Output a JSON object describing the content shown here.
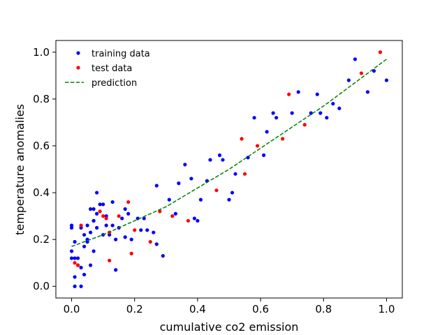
{
  "chart_data": {
    "type": "scatter",
    "title": "",
    "xlabel": "cumulative co2 emission",
    "ylabel": "temperature anomalies",
    "xlim": [
      -0.05,
      1.05
    ],
    "ylim": [
      -0.05,
      1.05
    ],
    "xticks": [
      0.0,
      0.2,
      0.4,
      0.6,
      0.8,
      1.0
    ],
    "yticks": [
      0.0,
      0.2,
      0.4,
      0.6,
      0.8,
      1.0
    ],
    "xtick_labels": [
      "0.0",
      "0.2",
      "0.4",
      "0.6",
      "0.8",
      "1.0"
    ],
    "ytick_labels": [
      "0.0",
      "0.2",
      "0.4",
      "0.6",
      "0.8",
      "1.0"
    ],
    "grid": false,
    "legend_position": "top-left",
    "colors": {
      "training": "#0000ff",
      "test": "#ff0000",
      "prediction": "#008000"
    },
    "series": [
      {
        "name": "training data",
        "kind": "scatter",
        "points": [
          [
            0.0,
            0.25
          ],
          [
            0.0,
            0.26
          ],
          [
            0.0,
            0.15
          ],
          [
            0.01,
            0.19
          ],
          [
            0.0,
            0.12
          ],
          [
            0.01,
            0.04
          ],
          [
            0.01,
            0.0
          ],
          [
            0.02,
            0.12
          ],
          [
            0.01,
            0.12
          ],
          [
            0.02,
            0.09
          ],
          [
            0.03,
            0.08
          ],
          [
            0.03,
            0.0
          ],
          [
            0.04,
            0.05
          ],
          [
            0.03,
            0.25
          ],
          [
            0.04,
            0.22
          ],
          [
            0.04,
            0.17
          ],
          [
            0.05,
            0.19
          ],
          [
            0.05,
            0.26
          ],
          [
            0.05,
            0.2
          ],
          [
            0.06,
            0.23
          ],
          [
            0.06,
            0.33
          ],
          [
            0.07,
            0.28
          ],
          [
            0.07,
            0.33
          ],
          [
            0.07,
            0.28
          ],
          [
            0.08,
            0.31
          ],
          [
            0.06,
            0.09
          ],
          [
            0.07,
            0.15
          ],
          [
            0.08,
            0.25
          ],
          [
            0.08,
            0.4
          ],
          [
            0.09,
            0.35
          ],
          [
            0.1,
            0.35
          ],
          [
            0.1,
            0.22
          ],
          [
            0.11,
            0.26
          ],
          [
            0.11,
            0.3
          ],
          [
            0.12,
            0.22
          ],
          [
            0.13,
            0.26
          ],
          [
            0.13,
            0.36
          ],
          [
            0.14,
            0.2
          ],
          [
            0.15,
            0.25
          ],
          [
            0.14,
            0.07
          ],
          [
            0.16,
            0.29
          ],
          [
            0.17,
            0.33
          ],
          [
            0.17,
            0.21
          ],
          [
            0.18,
            0.31
          ],
          [
            0.19,
            0.2
          ],
          [
            0.21,
            0.29
          ],
          [
            0.22,
            0.24
          ],
          [
            0.23,
            0.29
          ],
          [
            0.24,
            0.24
          ],
          [
            0.26,
            0.23
          ],
          [
            0.27,
            0.43
          ],
          [
            0.27,
            0.18
          ],
          [
            0.29,
            0.13
          ],
          [
            0.31,
            0.37
          ],
          [
            0.33,
            0.31
          ],
          [
            0.34,
            0.44
          ],
          [
            0.36,
            0.52
          ],
          [
            0.38,
            0.46
          ],
          [
            0.39,
            0.29
          ],
          [
            0.4,
            0.28
          ],
          [
            0.41,
            0.37
          ],
          [
            0.43,
            0.45
          ],
          [
            0.44,
            0.54
          ],
          [
            0.47,
            0.56
          ],
          [
            0.48,
            0.54
          ],
          [
            0.5,
            0.37
          ],
          [
            0.51,
            0.4
          ],
          [
            0.52,
            0.48
          ],
          [
            0.56,
            0.55
          ],
          [
            0.58,
            0.72
          ],
          [
            0.61,
            0.56
          ],
          [
            0.62,
            0.66
          ],
          [
            0.64,
            0.74
          ],
          [
            0.65,
            0.72
          ],
          [
            0.7,
            0.74
          ],
          [
            0.72,
            0.83
          ],
          [
            0.76,
            0.74
          ],
          [
            0.78,
            0.82
          ],
          [
            0.79,
            0.74
          ],
          [
            0.81,
            0.72
          ],
          [
            0.83,
            0.78
          ],
          [
            0.85,
            0.76
          ],
          [
            0.88,
            0.88
          ],
          [
            0.9,
            0.97
          ],
          [
            0.94,
            0.83
          ],
          [
            0.96,
            0.92
          ],
          [
            1.0,
            0.88
          ]
        ]
      },
      {
        "name": "test data",
        "kind": "scatter",
        "points": [
          [
            0.01,
            0.1
          ],
          [
            0.02,
            0.09
          ],
          [
            0.03,
            0.26
          ],
          [
            0.09,
            0.32
          ],
          [
            0.1,
            0.3
          ],
          [
            0.11,
            0.29
          ],
          [
            0.12,
            0.11
          ],
          [
            0.12,
            0.23
          ],
          [
            0.15,
            0.3
          ],
          [
            0.18,
            0.36
          ],
          [
            0.19,
            0.14
          ],
          [
            0.2,
            0.24
          ],
          [
            0.25,
            0.19
          ],
          [
            0.28,
            0.32
          ],
          [
            0.32,
            0.3
          ],
          [
            0.37,
            0.28
          ],
          [
            0.46,
            0.41
          ],
          [
            0.54,
            0.63
          ],
          [
            0.55,
            0.48
          ],
          [
            0.59,
            0.6
          ],
          [
            0.67,
            0.63
          ],
          [
            0.69,
            0.82
          ],
          [
            0.74,
            0.69
          ],
          [
            0.92,
            0.91
          ],
          [
            0.98,
            1.0
          ]
        ]
      },
      {
        "name": "prediction",
        "kind": "line",
        "style": "dashed",
        "x": [
          0.0,
          0.1,
          0.2,
          0.3,
          0.4,
          0.5,
          0.6,
          0.7,
          0.8,
          0.9,
          1.0
        ],
        "y": [
          0.17,
          0.22,
          0.28,
          0.34,
          0.42,
          0.5,
          0.59,
          0.68,
          0.77,
          0.87,
          0.97
        ]
      }
    ]
  }
}
